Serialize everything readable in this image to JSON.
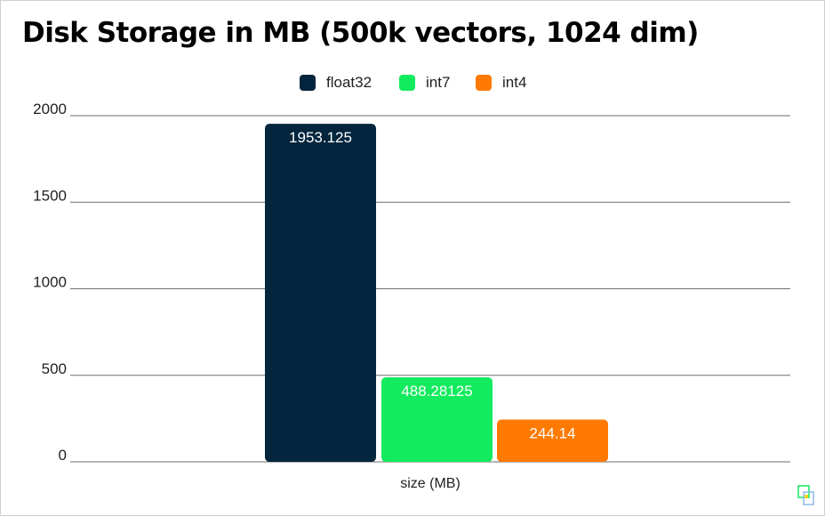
{
  "title": "Disk Storage in MB (500k vectors, 1024 dim)",
  "legend": [
    {
      "label": "float32",
      "color": "#03253D"
    },
    {
      "label": "int7",
      "color": "#12EB5E"
    },
    {
      "label": "int4",
      "color": "#FF7A00"
    }
  ],
  "chart_data": {
    "type": "bar",
    "title": "Disk Storage in MB (500k vectors, 1024 dim)",
    "categories": [
      "size (MB)"
    ],
    "xlabel": "size (MB)",
    "ylabel": "",
    "ylim": [
      0,
      2000
    ],
    "yticks": [
      0,
      500,
      1000,
      1500,
      2000
    ],
    "grid": true,
    "legend_position": "top",
    "series": [
      {
        "name": "float32",
        "values": [
          1953.125
        ],
        "label": "1953.125",
        "color": "#03253D"
      },
      {
        "name": "int7",
        "values": [
          488.28125
        ],
        "label": "488.28125",
        "color": "#12EB5E"
      },
      {
        "name": "int4",
        "values": [
          244.14
        ],
        "label": "244.14",
        "color": "#FF7A00"
      }
    ]
  }
}
